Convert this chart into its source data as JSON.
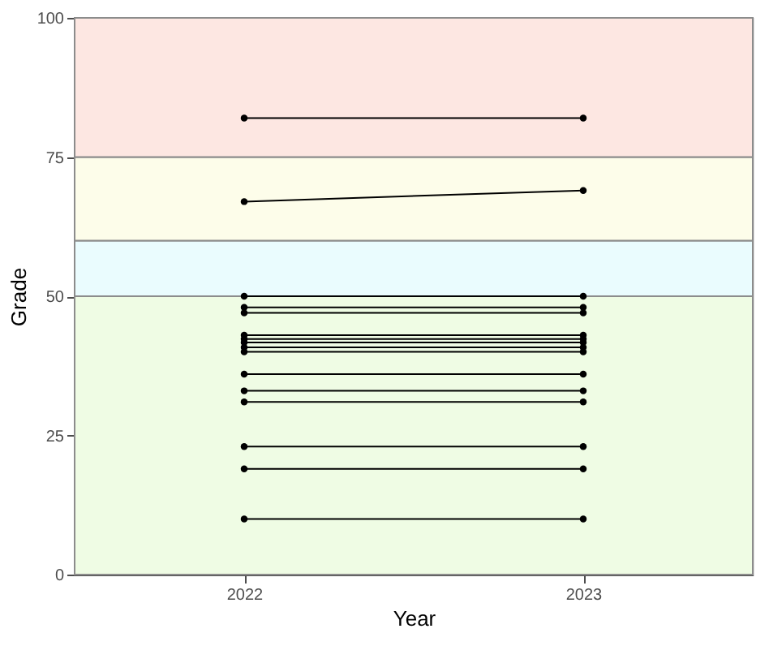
{
  "chart_data": {
    "type": "line",
    "xlabel": "Year",
    "ylabel": "Grade",
    "categories": [
      "2022",
      "2023"
    ],
    "series": [
      {
        "color": "#000000",
        "values": [
          82,
          82
        ]
      },
      {
        "color": "#000000",
        "values": [
          67,
          69
        ]
      },
      {
        "color": "#000000",
        "values": [
          50,
          50
        ]
      },
      {
        "color": "#000000",
        "values": [
          48,
          48
        ]
      },
      {
        "color": "#000000",
        "values": [
          47,
          47
        ]
      },
      {
        "color": "#000000",
        "values": [
          43,
          43
        ]
      },
      {
        "color": "#000000",
        "values": [
          42.3,
          42.3
        ]
      },
      {
        "color": "#000000",
        "values": [
          41.7,
          41.7
        ]
      },
      {
        "color": "#000000",
        "values": [
          40.8,
          40.8
        ]
      },
      {
        "color": "#000000",
        "values": [
          40,
          40
        ]
      },
      {
        "color": "#000000",
        "values": [
          36,
          36
        ]
      },
      {
        "color": "#000000",
        "values": [
          33,
          33
        ]
      },
      {
        "color": "#000000",
        "values": [
          31,
          31
        ]
      },
      {
        "color": "#000000",
        "values": [
          23,
          23
        ]
      },
      {
        "color": "#000000",
        "values": [
          19,
          19
        ]
      },
      {
        "color": "#000000",
        "values": [
          10,
          10
        ]
      }
    ],
    "bands": [
      {
        "axis": "y",
        "from": 0,
        "to": 50,
        "color": "#effce4"
      },
      {
        "axis": "y",
        "from": 50,
        "to": 60,
        "color": "#eafcfe"
      },
      {
        "axis": "y",
        "from": 60,
        "to": 75,
        "color": "#fdfdea"
      },
      {
        "axis": "y",
        "from": 75,
        "to": 100,
        "color": "#fde7e2"
      }
    ],
    "ylim": [
      0,
      100
    ],
    "yticks": [
      0,
      25,
      50,
      75,
      100
    ],
    "legend": false,
    "marker": "circle",
    "line_style": "solid"
  }
}
